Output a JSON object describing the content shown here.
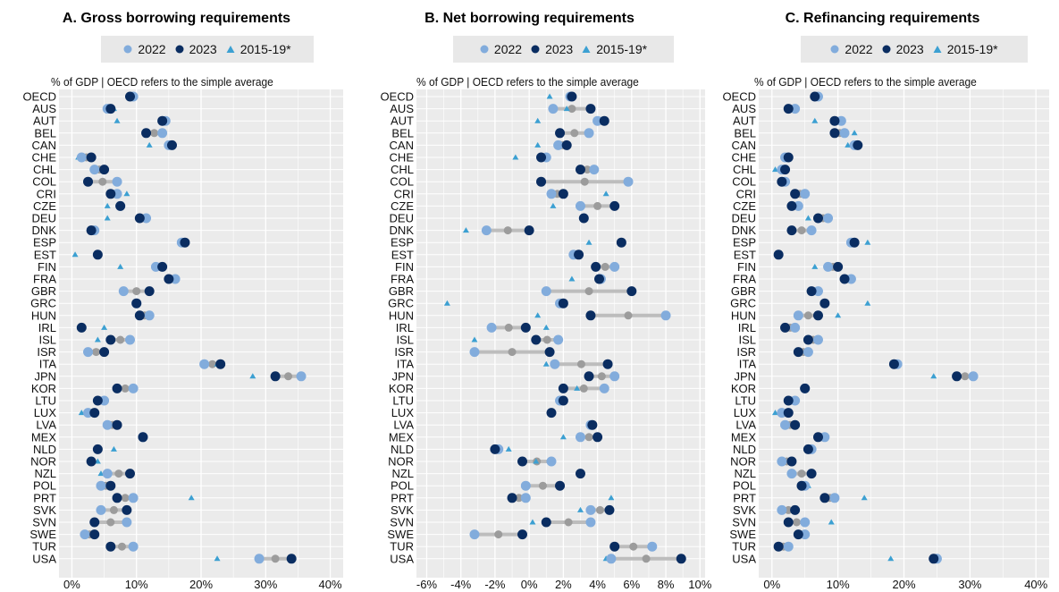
{
  "legend": {
    "a": "2022",
    "b": "2023",
    "c": "2015-19*"
  },
  "colors": {
    "a": "#82ACDC",
    "b": "#0A2D61",
    "c": "#3CA0D2",
    "range": "#bdbdbd",
    "mid": "#9c9c9c",
    "panel": "#ebebeb",
    "grid": "#ffffff"
  },
  "chart_data": [
    {
      "type": "scatter",
      "title": "A. Gross borrowing requirements",
      "subtitle": "% of GDP | OECD refers to the simple average",
      "xlim": [
        -2,
        42
      ],
      "xticks": [
        0,
        10,
        20,
        30,
        40
      ],
      "xtick_labels": [
        "0%",
        "10%",
        "20%",
        "30%",
        "40%"
      ],
      "categories": [
        "OECD",
        "AUS",
        "AUT",
        "BEL",
        "CAN",
        "CHE",
        "CHL",
        "COL",
        "CRI",
        "CZE",
        "DEU",
        "DNK",
        "ESP",
        "EST",
        "FIN",
        "FRA",
        "GBR",
        "GRC",
        "HUN",
        "IRL",
        "ISL",
        "ISR",
        "ITA",
        "JPN",
        "KOR",
        "LTU",
        "LUX",
        "LVA",
        "MEX",
        "NLD",
        "NOR",
        "NZL",
        "POL",
        "PRT",
        "SVK",
        "SVN",
        "SWE",
        "TUR",
        "USA"
      ],
      "series": [
        {
          "name": "2022",
          "values": [
            9.5,
            5.5,
            14.5,
            14.0,
            15.0,
            1.5,
            3.5,
            7.0,
            7.0,
            7.5,
            11.5,
            3.5,
            17.0,
            null,
            13.0,
            16.0,
            8.0,
            10.0,
            12.0,
            null,
            9.0,
            2.5,
            20.5,
            35.5,
            9.5,
            5.0,
            2.5,
            5.5,
            11.0,
            null,
            null,
            5.5,
            4.5,
            9.5,
            4.5,
            8.5,
            2.0,
            9.5,
            29.0
          ]
        },
        {
          "name": "2023",
          "values": [
            9.0,
            6.0,
            14.0,
            11.5,
            15.5,
            3.0,
            5.0,
            2.5,
            6.0,
            7.5,
            10.5,
            3.0,
            17.5,
            4.0,
            14.0,
            15.0,
            12.0,
            10.0,
            10.5,
            1.5,
            6.0,
            5.0,
            23.0,
            31.5,
            7.0,
            4.0,
            3.5,
            7.0,
            11.0,
            4.0,
            3.0,
            9.0,
            6.0,
            7.0,
            8.5,
            3.5,
            3.5,
            6.0,
            34.0
          ]
        },
        {
          "name": "2015-19*",
          "values": [
            9.0,
            6.5,
            7.0,
            null,
            12.0,
            1.0,
            3.5,
            null,
            8.5,
            5.5,
            5.5,
            3.0,
            null,
            0.5,
            7.5,
            null,
            null,
            null,
            null,
            5.0,
            4.0,
            null,
            22.5,
            28.0,
            null,
            null,
            1.5,
            null,
            null,
            6.5,
            4.0,
            4.5,
            null,
            18.5,
            null,
            null,
            null,
            null,
            22.5
          ]
        }
      ]
    },
    {
      "type": "scatter",
      "title": "B. Net borrowing requirements",
      "subtitle": "% of GDP | OECD refers to the simple average",
      "xlim": [
        -6.6,
        10.3
      ],
      "xticks": [
        -6,
        -4,
        -2,
        0,
        2,
        4,
        6,
        8,
        10
      ],
      "xtick_labels": [
        "-6%",
        "-4%",
        "-2%",
        "0%",
        "2%",
        "4%",
        "6%",
        "8%",
        "10%"
      ],
      "categories": [
        "OECD",
        "AUS",
        "AUT",
        "BEL",
        "CAN",
        "CHE",
        "CHL",
        "COL",
        "CRI",
        "CZE",
        "DEU",
        "DNK",
        "ESP",
        "EST",
        "FIN",
        "FRA",
        "GBR",
        "GRC",
        "HUN",
        "IRL",
        "ISL",
        "ISR",
        "ITA",
        "JPN",
        "KOR",
        "LTU",
        "LUX",
        "LVA",
        "MEX",
        "NLD",
        "NOR",
        "NZL",
        "POL",
        "PRT",
        "SVK",
        "SVN",
        "SWE",
        "TUR",
        "USA"
      ],
      "series": [
        {
          "name": "2022",
          "values": [
            2.4,
            1.4,
            4.0,
            3.5,
            1.7,
            1.0,
            3.8,
            5.8,
            1.3,
            3.0,
            null,
            -2.5,
            null,
            2.6,
            5.0,
            4.2,
            1.0,
            1.8,
            8.0,
            -2.2,
            1.7,
            -3.2,
            1.5,
            5.0,
            4.4,
            1.8,
            null,
            3.6,
            3.0,
            -1.8,
            1.3,
            null,
            -0.2,
            -0.2,
            3.6,
            3.6,
            -3.2,
            7.2,
            4.8
          ]
        },
        {
          "name": "2023",
          "values": [
            2.5,
            3.6,
            4.4,
            1.8,
            2.2,
            0.7,
            3.0,
            0.7,
            2.0,
            5.0,
            3.2,
            0.0,
            5.4,
            2.9,
            3.9,
            4.1,
            6.0,
            2.0,
            3.6,
            -0.2,
            0.4,
            1.2,
            4.6,
            3.5,
            2.0,
            2.0,
            1.3,
            3.7,
            4.0,
            -2.0,
            -0.4,
            3.0,
            1.8,
            -1.0,
            4.7,
            1.0,
            -0.4,
            5.0,
            8.9
          ]
        },
        {
          "name": "2015-19*",
          "values": [
            1.2,
            2.2,
            0.5,
            null,
            0.5,
            -0.8,
            null,
            null,
            4.5,
            1.4,
            null,
            -3.7,
            3.5,
            null,
            null,
            2.5,
            null,
            -4.8,
            0.5,
            1.0,
            -3.2,
            null,
            1.0,
            null,
            2.8,
            null,
            null,
            null,
            2.0,
            -1.2,
            0.4,
            null,
            null,
            4.8,
            3.0,
            0.2,
            null,
            null,
            4.5
          ]
        }
      ]
    },
    {
      "type": "scatter",
      "title": "C. Refinancing requirements",
      "subtitle": "% of GDP | OECD refers to the simple average",
      "xlim": [
        -2,
        42
      ],
      "xticks": [
        0,
        10,
        20,
        30,
        40
      ],
      "xtick_labels": [
        "0%",
        "10%",
        "20%",
        "30%",
        "40%"
      ],
      "categories": [
        "OECD",
        "AUS",
        "AUT",
        "BEL",
        "CAN",
        "CHE",
        "CHL",
        "COL",
        "CRI",
        "CZE",
        "DEU",
        "DNK",
        "ESP",
        "EST",
        "FIN",
        "FRA",
        "GBR",
        "GRC",
        "HUN",
        "IRL",
        "ISL",
        "ISR",
        "ITA",
        "JPN",
        "KOR",
        "LTU",
        "LUX",
        "LVA",
        "MEX",
        "NLD",
        "NOR",
        "NZL",
        "POL",
        "PRT",
        "SVK",
        "SVN",
        "SWE",
        "TUR",
        "USA"
      ],
      "series": [
        {
          "name": "2022",
          "values": [
            7.0,
            3.5,
            10.5,
            11.0,
            12.5,
            2.0,
            1.5,
            2.0,
            5.0,
            4.0,
            8.5,
            6.0,
            12.0,
            null,
            8.5,
            12.0,
            7.0,
            null,
            4.0,
            3.5,
            7.0,
            5.5,
            19.0,
            30.5,
            5.0,
            3.5,
            1.5,
            2.0,
            8.0,
            6.0,
            1.5,
            3.0,
            5.0,
            9.5,
            1.5,
            5.0,
            5.0,
            2.5,
            25.0
          ]
        },
        {
          "name": "2023",
          "values": [
            6.5,
            2.5,
            9.5,
            9.5,
            13.0,
            2.5,
            2.0,
            1.5,
            3.5,
            3.0,
            7.0,
            3.0,
            12.5,
            1.0,
            10.0,
            11.0,
            6.0,
            8.0,
            7.0,
            2.0,
            5.5,
            4.0,
            18.5,
            28.0,
            5.0,
            2.5,
            2.5,
            3.5,
            7.0,
            5.5,
            3.0,
            6.0,
            4.5,
            8.0,
            3.5,
            2.5,
            4.0,
            1.0,
            24.5
          ]
        },
        {
          "name": "2015-19*",
          "values": [
            null,
            null,
            6.5,
            12.5,
            11.5,
            null,
            0.5,
            null,
            null,
            null,
            5.5,
            null,
            14.5,
            null,
            6.5,
            null,
            null,
            14.5,
            10.0,
            null,
            null,
            null,
            null,
            24.5,
            null,
            null,
            0.5,
            null,
            null,
            null,
            null,
            null,
            5.5,
            14.0,
            null,
            9.0,
            null,
            null,
            18.0
          ]
        }
      ]
    }
  ]
}
